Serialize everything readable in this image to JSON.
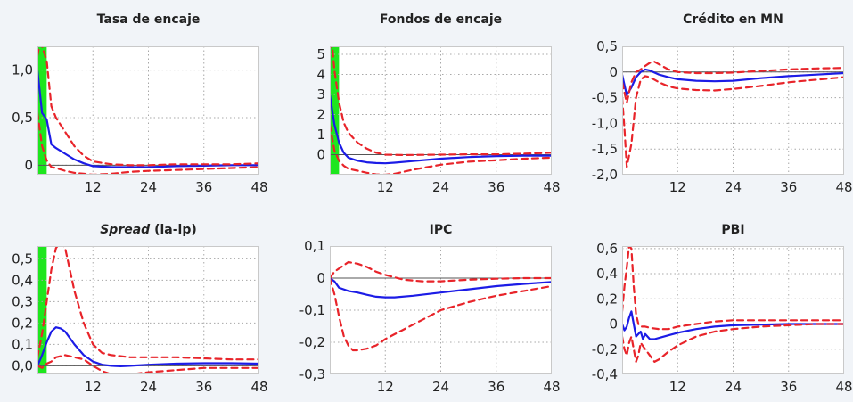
{
  "colors": {
    "background": "#f1f4f8",
    "plot_background": "#ffffff",
    "irf_line": "#1c1ce6",
    "band_line": "#e8242a",
    "highlight": "#1ee61e",
    "zero_line": "#555555",
    "grid": "#a8a8a8",
    "text": "#222222"
  },
  "chart_data": [
    {
      "type": "line",
      "title": "Tasa de encaje",
      "title_italic": "",
      "xlim": [
        0,
        48
      ],
      "ylim": [
        -0.1,
        1.25
      ],
      "xticks": [
        12,
        24,
        36,
        48
      ],
      "xtick_labels": [
        "12",
        "24",
        "36",
        "48"
      ],
      "yticks": [
        0,
        0.5,
        1.0
      ],
      "ytick_labels": [
        "0",
        "0,5",
        "1,0"
      ],
      "grid": true,
      "highlight_x": [
        0,
        2
      ],
      "series": [
        {
          "role": "irf",
          "x": [
            0,
            1,
            2,
            3,
            4,
            6,
            8,
            10,
            12,
            16,
            20,
            24,
            30,
            36,
            42,
            48
          ],
          "y": [
            1.0,
            0.55,
            0.48,
            0.22,
            0.18,
            0.12,
            0.06,
            0.02,
            -0.01,
            -0.02,
            -0.02,
            -0.02,
            -0.01,
            -0.005,
            0,
            0
          ]
        },
        {
          "role": "upper",
          "x": [
            0,
            0.5,
            1,
            2,
            3,
            4,
            6,
            8,
            10,
            12,
            16,
            20,
            24,
            30,
            36,
            42,
            48
          ],
          "y": [
            1.15,
            1.28,
            1.25,
            1.1,
            0.62,
            0.5,
            0.35,
            0.2,
            0.1,
            0.04,
            0.01,
            0.0,
            0.0,
            0.01,
            0.01,
            0.01,
            0.02
          ]
        },
        {
          "role": "lower",
          "x": [
            0,
            1,
            2,
            3,
            4,
            6,
            8,
            10,
            12,
            16,
            20,
            24,
            30,
            36,
            42,
            48
          ],
          "y": [
            0.55,
            0.2,
            0.05,
            -0.02,
            -0.03,
            -0.06,
            -0.08,
            -0.09,
            -0.1,
            -0.09,
            -0.07,
            -0.06,
            -0.05,
            -0.04,
            -0.03,
            -0.02
          ]
        }
      ]
    },
    {
      "type": "line",
      "title": "Fondos de encaje",
      "title_italic": "",
      "xlim": [
        0,
        48
      ],
      "ylim": [
        -1.0,
        5.4
      ],
      "xticks": [
        12,
        24,
        36,
        48
      ],
      "xtick_labels": [
        "12",
        "24",
        "36",
        "48"
      ],
      "yticks": [
        0,
        1,
        2,
        3,
        4,
        5
      ],
      "ytick_labels": [
        "0",
        "1",
        "2",
        "3",
        "4",
        "5"
      ],
      "grid": true,
      "highlight_x": [
        0,
        2
      ],
      "series": [
        {
          "role": "irf",
          "x": [
            0,
            1,
            2,
            3,
            4,
            6,
            8,
            10,
            12,
            14,
            18,
            24,
            30,
            36,
            42,
            48
          ],
          "y": [
            3.0,
            1.5,
            0.6,
            0.1,
            -0.15,
            -0.3,
            -0.38,
            -0.42,
            -0.43,
            -0.4,
            -0.32,
            -0.2,
            -0.12,
            -0.07,
            -0.05,
            -0.05
          ]
        },
        {
          "role": "upper",
          "x": [
            0,
            0.5,
            1,
            2,
            3,
            4,
            6,
            8,
            10,
            12,
            16,
            20,
            24,
            30,
            36,
            42,
            48
          ],
          "y": [
            5.3,
            5.5,
            4.2,
            2.6,
            1.6,
            1.1,
            0.6,
            0.3,
            0.1,
            0.0,
            -0.02,
            -0.01,
            0.0,
            0.02,
            0.02,
            0.05,
            0.1
          ]
        },
        {
          "role": "lower",
          "x": [
            0,
            1,
            2,
            3,
            4,
            6,
            8,
            10,
            12,
            14,
            18,
            24,
            30,
            36,
            42,
            48
          ],
          "y": [
            1.5,
            0.2,
            -0.3,
            -0.55,
            -0.7,
            -0.8,
            -0.9,
            -0.98,
            -1.0,
            -0.95,
            -0.75,
            -0.5,
            -0.35,
            -0.28,
            -0.2,
            -0.15
          ]
        }
      ]
    },
    {
      "type": "line",
      "title": "Crédito en MN",
      "title_italic": "",
      "xlim": [
        0,
        48
      ],
      "ylim": [
        -2.0,
        0.5
      ],
      "xticks": [
        12,
        24,
        36,
        48
      ],
      "xtick_labels": [
        "12",
        "24",
        "36",
        "48"
      ],
      "yticks": [
        -2.0,
        -1.5,
        -1.0,
        -0.5,
        0,
        0.5
      ],
      "ytick_labels": [
        "-2,0",
        "-1,5",
        "-1,0",
        "-0,5",
        "0",
        "0,5"
      ],
      "grid": true,
      "highlight_x": null,
      "series": [
        {
          "role": "irf",
          "x": [
            0,
            1,
            2,
            3,
            4,
            5,
            6,
            8,
            10,
            12,
            16,
            20,
            24,
            30,
            36,
            42,
            48
          ],
          "y": [
            -0.05,
            -0.45,
            -0.3,
            -0.1,
            0.0,
            0.05,
            0.03,
            -0.05,
            -0.1,
            -0.14,
            -0.17,
            -0.18,
            -0.17,
            -0.12,
            -0.08,
            -0.05,
            -0.02
          ]
        },
        {
          "role": "upper",
          "x": [
            0,
            1,
            2,
            3,
            4,
            5,
            6,
            7,
            8,
            10,
            12,
            16,
            20,
            24,
            30,
            36,
            42,
            48
          ],
          "y": [
            -0.2,
            -0.6,
            -0.2,
            0.0,
            0.05,
            0.12,
            0.18,
            0.2,
            0.15,
            0.05,
            0.0,
            -0.02,
            -0.02,
            -0.01,
            0.02,
            0.05,
            0.07,
            0.08
          ]
        },
        {
          "role": "lower",
          "x": [
            0,
            0.5,
            1,
            2,
            3,
            4,
            5,
            6,
            8,
            10,
            12,
            16,
            20,
            24,
            30,
            36,
            42,
            48
          ],
          "y": [
            -0.5,
            -1.1,
            -1.85,
            -1.4,
            -0.5,
            -0.15,
            -0.08,
            -0.1,
            -0.2,
            -0.28,
            -0.32,
            -0.35,
            -0.36,
            -0.33,
            -0.27,
            -0.2,
            -0.15,
            -0.1
          ]
        }
      ]
    },
    {
      "type": "line",
      "title": "Spread",
      "title_italic": "Spread",
      "title_rest": " (ia-ip)",
      "xlim": [
        0,
        48
      ],
      "ylim": [
        -0.04,
        0.56
      ],
      "xticks": [
        12,
        24,
        36,
        48
      ],
      "xtick_labels": [
        "12",
        "24",
        "36",
        "48"
      ],
      "yticks": [
        0.0,
        0.1,
        0.2,
        0.3,
        0.4,
        0.5
      ],
      "ytick_labels": [
        "0,0",
        "0,1",
        "0,2",
        "0,3",
        "0,4",
        "0,5"
      ],
      "grid": true,
      "highlight_x": [
        0,
        2
      ],
      "series": [
        {
          "role": "irf",
          "x": [
            0,
            1,
            2,
            3,
            4,
            5,
            6,
            8,
            10,
            12,
            14,
            16,
            18,
            20,
            24,
            30,
            36,
            42,
            48
          ],
          "y": [
            0.0,
            0.05,
            0.11,
            0.16,
            0.18,
            0.175,
            0.16,
            0.1,
            0.05,
            0.02,
            0.005,
            0.0,
            -0.002,
            0.0,
            0.005,
            0.01,
            0.012,
            0.012,
            0.01
          ]
        },
        {
          "role": "upper",
          "x": [
            0,
            1,
            2,
            3,
            4,
            5,
            6,
            7,
            8,
            10,
            12,
            14,
            16,
            20,
            24,
            30,
            36,
            42,
            48
          ],
          "y": [
            0.04,
            0.15,
            0.3,
            0.45,
            0.55,
            0.58,
            0.55,
            0.45,
            0.35,
            0.2,
            0.1,
            0.06,
            0.05,
            0.04,
            0.04,
            0.04,
            0.035,
            0.03,
            0.03
          ]
        },
        {
          "role": "lower",
          "x": [
            0,
            1,
            2,
            3,
            4,
            6,
            8,
            10,
            12,
            14,
            16,
            18,
            20,
            24,
            30,
            36,
            42,
            48
          ],
          "y": [
            0.0,
            -0.01,
            0.01,
            0.02,
            0.04,
            0.05,
            0.04,
            0.03,
            0.0,
            -0.025,
            -0.04,
            -0.045,
            -0.04,
            -0.03,
            -0.02,
            -0.01,
            -0.01,
            -0.01
          ]
        }
      ]
    },
    {
      "type": "line",
      "title": "IPC",
      "title_italic": "",
      "xlim": [
        0,
        48
      ],
      "ylim": [
        -0.3,
        0.1
      ],
      "xticks": [
        12,
        24,
        36,
        48
      ],
      "xtick_labels": [
        "12",
        "24",
        "36",
        "48"
      ],
      "yticks": [
        -0.3,
        -0.2,
        -0.1,
        0,
        0.1
      ],
      "ytick_labels": [
        "-0,3",
        "-0,2",
        "-0,1",
        "0",
        "0,1"
      ],
      "grid": true,
      "highlight_x": null,
      "series": [
        {
          "role": "irf",
          "x": [
            0,
            1,
            2,
            4,
            6,
            8,
            10,
            12,
            14,
            18,
            24,
            30,
            36,
            42,
            48
          ],
          "y": [
            0.0,
            -0.01,
            -0.03,
            -0.04,
            -0.045,
            -0.052,
            -0.058,
            -0.06,
            -0.06,
            -0.055,
            -0.045,
            -0.035,
            -0.025,
            -0.018,
            -0.012
          ]
        },
        {
          "role": "upper",
          "x": [
            0,
            1,
            2,
            3,
            4,
            6,
            8,
            10,
            12,
            16,
            20,
            24,
            30,
            36,
            42,
            48
          ],
          "y": [
            0.0,
            0.02,
            0.03,
            0.04,
            0.05,
            0.045,
            0.035,
            0.02,
            0.01,
            -0.005,
            -0.01,
            -0.01,
            -0.005,
            -0.002,
            0.0,
            0.0
          ]
        },
        {
          "role": "lower",
          "x": [
            0,
            1,
            2,
            3,
            4,
            5,
            6,
            8,
            10,
            12,
            16,
            20,
            24,
            30,
            36,
            42,
            48
          ],
          "y": [
            0.0,
            -0.05,
            -0.12,
            -0.18,
            -0.21,
            -0.225,
            -0.225,
            -0.22,
            -0.21,
            -0.19,
            -0.16,
            -0.13,
            -0.1,
            -0.075,
            -0.055,
            -0.04,
            -0.025
          ]
        }
      ]
    },
    {
      "type": "line",
      "title": "PBI",
      "title_italic": "",
      "xlim": [
        0,
        48
      ],
      "ylim": [
        -0.4,
        0.62
      ],
      "xticks": [
        12,
        24,
        36,
        48
      ],
      "xtick_labels": [
        "12",
        "24",
        "36",
        "48"
      ],
      "yticks": [
        -0.4,
        -0.2,
        0,
        0.2,
        0.4,
        0.6
      ],
      "ytick_labels": [
        "-0,4",
        "-0,2",
        "0",
        "0,2",
        "0,4",
        "0,6"
      ],
      "grid": true,
      "highlight_x": null,
      "series": [
        {
          "role": "irf",
          "x": [
            0,
            0.5,
            1,
            1.5,
            2,
            2.5,
            3,
            3.5,
            4,
            4.5,
            5,
            5.5,
            6,
            7,
            8,
            10,
            12,
            16,
            20,
            24,
            30,
            36,
            42,
            48
          ],
          "y": [
            0.0,
            -0.05,
            -0.02,
            0.05,
            0.1,
            0.0,
            -0.1,
            -0.08,
            -0.06,
            -0.12,
            -0.08,
            -0.1,
            -0.12,
            -0.12,
            -0.11,
            -0.09,
            -0.07,
            -0.04,
            -0.02,
            -0.01,
            -0.005,
            0.0,
            0.0,
            0.0
          ]
        },
        {
          "role": "upper",
          "x": [
            0,
            0.5,
            1,
            1.5,
            2,
            2.5,
            3,
            3.5,
            4,
            5,
            6,
            8,
            10,
            12,
            16,
            20,
            24,
            30,
            36,
            42,
            48
          ],
          "y": [
            0.1,
            0.3,
            0.45,
            0.62,
            0.6,
            0.3,
            0.08,
            0.0,
            -0.02,
            -0.02,
            -0.03,
            -0.04,
            -0.04,
            -0.02,
            0.0,
            0.02,
            0.03,
            0.03,
            0.03,
            0.03,
            0.03
          ]
        },
        {
          "role": "lower",
          "x": [
            0,
            0.5,
            1,
            1.5,
            2,
            2.5,
            3,
            3.5,
            4,
            5,
            6,
            7,
            8,
            10,
            12,
            16,
            20,
            24,
            30,
            36,
            42,
            48
          ],
          "y": [
            -0.1,
            -0.2,
            -0.25,
            -0.15,
            -0.1,
            -0.2,
            -0.3,
            -0.25,
            -0.15,
            -0.2,
            -0.25,
            -0.3,
            -0.28,
            -0.22,
            -0.17,
            -0.1,
            -0.06,
            -0.04,
            -0.02,
            -0.01,
            0.0,
            0.0
          ]
        }
      ]
    }
  ]
}
